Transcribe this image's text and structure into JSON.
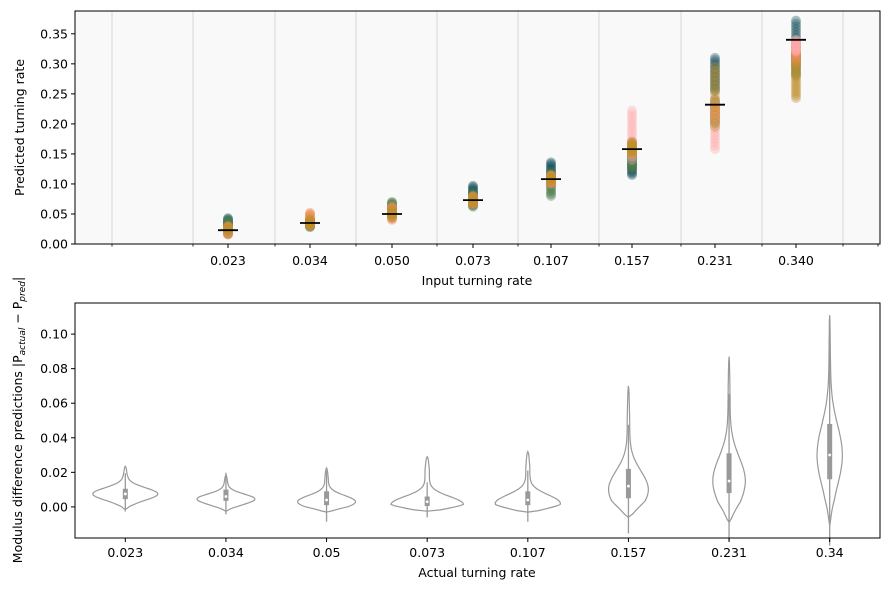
{
  "chart_data": [
    {
      "type": "scatter",
      "title": "",
      "xlabel": "Input turning rate",
      "ylabel": "Predicted turning rate",
      "categories": [
        "0.023",
        "0.034",
        "0.050",
        "0.073",
        "0.107",
        "0.157",
        "0.231",
        "0.340"
      ],
      "ylim": [
        0,
        0.388
      ],
      "yticks": [
        0.0,
        0.05,
        0.1,
        0.15,
        0.2,
        0.25,
        0.3,
        0.35
      ],
      "ytick_labels": [
        "0.00",
        "0.05",
        "0.10",
        "0.15",
        "0.20",
        "0.25",
        "0.30",
        "0.35"
      ],
      "grid": "vertical",
      "mean_markers": [
        0.023,
        0.035,
        0.05,
        0.073,
        0.108,
        0.158,
        0.232,
        0.34
      ],
      "series": [
        {
          "color": "#134f5c",
          "ranges": [
            [
              0.018,
              0.043
            ],
            [
              0.03,
              0.04
            ],
            [
              0.044,
              0.06
            ],
            [
              0.065,
              0.097
            ],
            [
              0.1,
              0.136
            ],
            [
              0.115,
              0.15
            ],
            [
              0.255,
              0.31
            ],
            [
              0.3,
              0.372
            ]
          ]
        },
        {
          "color": "#4f7f4f",
          "ranges": [
            [
              0.016,
              0.04
            ],
            [
              0.028,
              0.042
            ],
            [
              0.052,
              0.07
            ],
            [
              0.062,
              0.085
            ],
            [
              0.08,
              0.12
            ],
            [
              0.125,
              0.155
            ],
            [
              0.2,
              0.24
            ],
            [
              0.28,
              0.32
            ]
          ]
        },
        {
          "color": "#ee8f52",
          "ranges": [
            [
              0.016,
              0.03
            ],
            [
              0.03,
              0.052
            ],
            [
              0.04,
              0.063
            ],
            [
              0.066,
              0.08
            ],
            [
              0.1,
              0.115
            ],
            [
              0.15,
              0.17
            ],
            [
              0.21,
              0.23
            ],
            [
              0.3,
              0.33
            ]
          ]
        },
        {
          "color": "#ffaaaa",
          "ranges": [
            [
              0.02,
              0.026
            ],
            [
              0.033,
              0.038
            ],
            [
              0.046,
              0.054
            ],
            [
              0.07,
              0.076
            ],
            [
              0.106,
              0.112
            ],
            [
              0.14,
              0.222
            ],
            [
              0.158,
              0.24
            ],
            [
              0.32,
              0.34
            ]
          ]
        },
        {
          "color": "#c08e2e",
          "ranges": [
            [
              0.02,
              0.028
            ],
            [
              0.03,
              0.04
            ],
            [
              0.046,
              0.056
            ],
            [
              0.068,
              0.078
            ],
            [
              0.104,
              0.114
            ],
            [
              0.15,
              0.17
            ],
            [
              0.195,
              0.295
            ],
            [
              0.243,
              0.3
            ]
          ]
        }
      ]
    },
    {
      "type": "violin",
      "title": "",
      "xlabel": "Actual turning rate",
      "ylabel": "Modulus difference predictions |P_actual − P_pred|",
      "ylabel_main": "Modulus difference predictions ",
      "ylabel_sub_a": "actual",
      "ylabel_sub_b": "pred",
      "categories": [
        "0.023",
        "0.034",
        "0.05",
        "0.073",
        "0.107",
        "0.157",
        "0.231",
        "0.34"
      ],
      "ylim": [
        -0.018,
        0.118
      ],
      "yticks": [
        0.0,
        0.02,
        0.04,
        0.06,
        0.08,
        0.1
      ],
      "ytick_labels": [
        "0.00",
        "0.02",
        "0.04",
        "0.06",
        "0.08",
        "0.10"
      ],
      "violins": [
        {
          "min": -0.0015,
          "max": 0.0235,
          "q1": 0.0045,
          "median": 0.0075,
          "q3": 0.0105,
          "width": 0.9,
          "peak": 0.0075
        },
        {
          "min": -0.0025,
          "max": 0.0185,
          "q1": 0.0035,
          "median": 0.006,
          "q3": 0.01,
          "width": 0.8,
          "peak": 0.0045
        },
        {
          "min": -0.003,
          "max": 0.0225,
          "q1": 0.001,
          "median": 0.004,
          "q3": 0.009,
          "width": 0.8,
          "peak": 0.003
        },
        {
          "min": -0.0025,
          "max": 0.029,
          "q1": 0.0005,
          "median": 0.003,
          "q3": 0.006,
          "width": 1.0,
          "peak": 0.0015
        },
        {
          "min": -0.003,
          "max": 0.032,
          "q1": 0.001,
          "median": 0.004,
          "q3": 0.009,
          "width": 0.9,
          "peak": 0.002
        },
        {
          "min": -0.006,
          "max": 0.07,
          "q1": 0.005,
          "median": 0.012,
          "q3": 0.022,
          "width": 0.55,
          "peak": 0.01
        },
        {
          "min": -0.009,
          "max": 0.087,
          "q1": 0.008,
          "median": 0.015,
          "q3": 0.031,
          "width": 0.45,
          "peak": 0.015
        },
        {
          "min": -0.011,
          "max": 0.111,
          "q1": 0.016,
          "median": 0.03,
          "q3": 0.048,
          "width": 0.35,
          "peak": 0.03
        }
      ],
      "color": "#999999"
    }
  ]
}
